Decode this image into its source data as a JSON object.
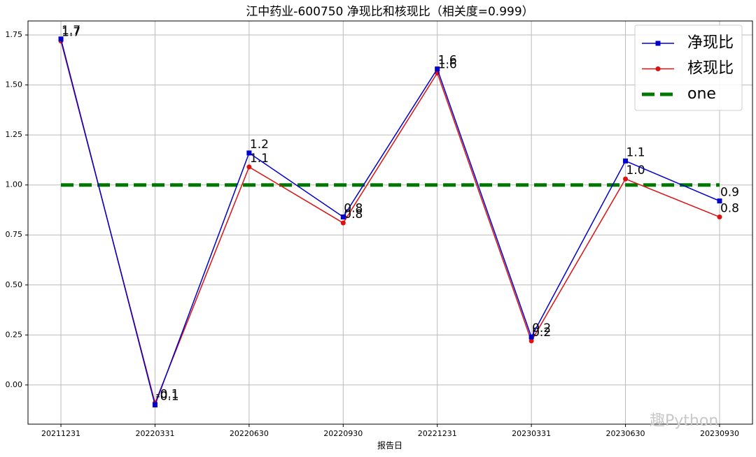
{
  "chart_data": {
    "type": "line",
    "title": "江中药业-600750 净现比和核现比（相关度=0.999）",
    "x_label": "报告日",
    "categories": [
      "20211231",
      "20220331",
      "20220630",
      "20220930",
      "20221231",
      "20230331",
      "20230630",
      "20230930"
    ],
    "series": [
      {
        "name": "净现比",
        "color": "#0000cc",
        "marker": "square",
        "values": [
          1.73,
          -0.1,
          1.16,
          0.84,
          1.58,
          0.24,
          1.12,
          0.92
        ],
        "value_labels": [
          "1.7",
          "-0.1",
          "1.2",
          "0.8",
          "1.6",
          "0.2",
          "1.1",
          "0.9"
        ]
      },
      {
        "name": "核现比",
        "color": "#dd1111",
        "marker": "circle",
        "values": [
          1.72,
          -0.09,
          1.09,
          0.81,
          1.56,
          0.22,
          1.03,
          0.84
        ],
        "value_labels": [
          "1.7",
          "-0.1",
          "1.1",
          "0.8",
          "1.6",
          "0.2",
          "1.0",
          "0.8"
        ]
      },
      {
        "name": "one",
        "color": "#007700",
        "dashed": true,
        "values": [
          1,
          1,
          1,
          1,
          1,
          1,
          1,
          1
        ]
      }
    ],
    "ylim": [
      -0.196,
      1.82
    ],
    "yticks": [
      {
        "value": 0,
        "label": "0.00"
      },
      {
        "value": 0.25,
        "label": "0.25"
      },
      {
        "value": 0.5,
        "label": "0.50"
      },
      {
        "value": 0.75,
        "label": "0.75"
      },
      {
        "value": 1,
        "label": "1.00"
      },
      {
        "value": 1.25,
        "label": "1.25"
      },
      {
        "value": 1.5,
        "label": "1.50"
      },
      {
        "value": 1.75,
        "label": "1.75"
      }
    ],
    "grid": true,
    "legend": "upper right",
    "watermark": "趣Python"
  }
}
